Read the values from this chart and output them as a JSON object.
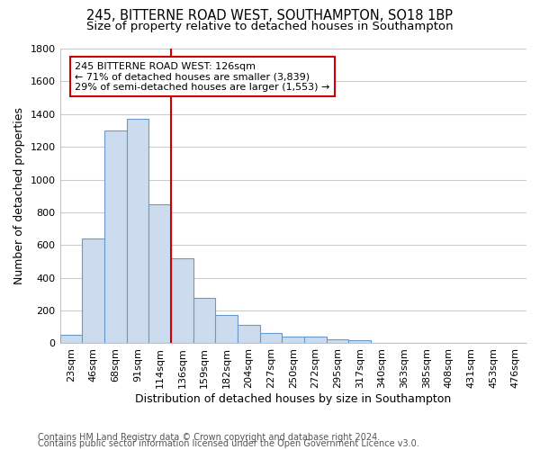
{
  "title_line1": "245, BITTERNE ROAD WEST, SOUTHAMPTON, SO18 1BP",
  "title_line2": "Size of property relative to detached houses in Southampton",
  "xlabel": "Distribution of detached houses by size in Southampton",
  "ylabel": "Number of detached properties",
  "bin_labels": [
    "23sqm",
    "46sqm",
    "68sqm",
    "91sqm",
    "114sqm",
    "136sqm",
    "159sqm",
    "182sqm",
    "204sqm",
    "227sqm",
    "250sqm",
    "272sqm",
    "295sqm",
    "317sqm",
    "340sqm",
    "363sqm",
    "385sqm",
    "408sqm",
    "431sqm",
    "453sqm",
    "476sqm"
  ],
  "bar_heights": [
    50,
    640,
    1300,
    1370,
    850,
    520,
    280,
    175,
    110,
    65,
    40,
    40,
    25,
    20,
    5,
    5,
    5,
    0,
    0,
    0,
    0
  ],
  "bar_color": "#ccdcee",
  "bar_edge_color": "#6699cc",
  "bar_width": 1.0,
  "vline_x": 4.5,
  "vline_color": "#cc0000",
  "annotation_text": "245 BITTERNE ROAD WEST: 126sqm\n← 71% of detached houses are smaller (3,839)\n29% of semi-detached houses are larger (1,553) →",
  "annotation_box_color": "#ffffff",
  "annotation_box_edge_color": "#cc0000",
  "ylim": [
    0,
    1800
  ],
  "yticks": [
    0,
    200,
    400,
    600,
    800,
    1000,
    1200,
    1400,
    1600,
    1800
  ],
  "background_color": "#ffffff",
  "grid_color": "#cccccc",
  "footer_line1": "Contains HM Land Registry data © Crown copyright and database right 2024.",
  "footer_line2": "Contains public sector information licensed under the Open Government Licence v3.0.",
  "title_fontsize": 10.5,
  "subtitle_fontsize": 9.5,
  "axis_label_fontsize": 9,
  "tick_fontsize": 8,
  "annotation_fontsize": 8,
  "footer_fontsize": 7
}
